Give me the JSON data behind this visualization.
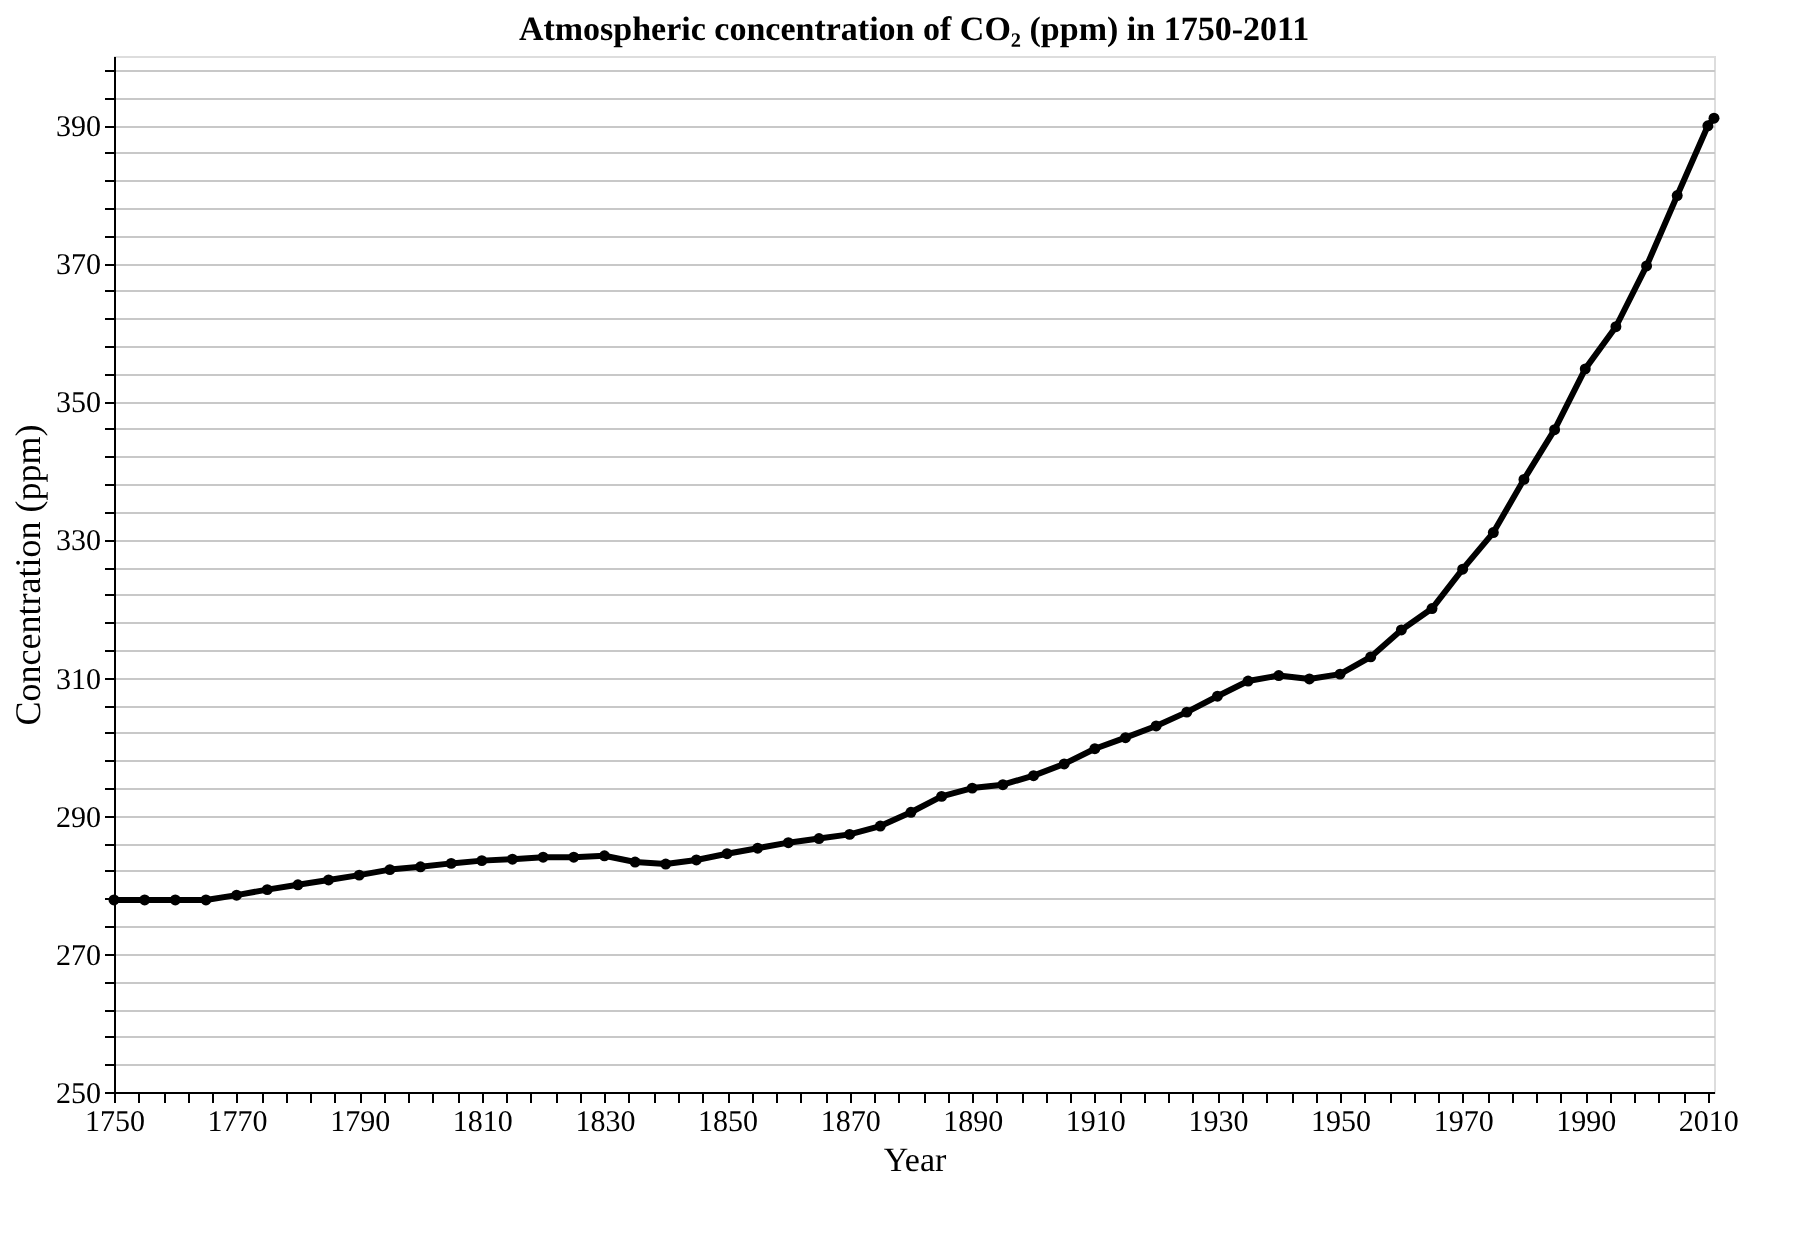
{
  "chart_data": {
    "type": "line",
    "title": "Atmospheric concentration of CO₂ (ppm) in 1750-2011",
    "xlabel": "Year",
    "ylabel": "Concentration (ppm)",
    "x": [
      1750,
      1755,
      1760,
      1765,
      1770,
      1775,
      1780,
      1785,
      1790,
      1795,
      1800,
      1805,
      1810,
      1815,
      1820,
      1825,
      1830,
      1835,
      1840,
      1845,
      1850,
      1855,
      1860,
      1865,
      1870,
      1875,
      1880,
      1885,
      1890,
      1895,
      1900,
      1905,
      1910,
      1915,
      1920,
      1925,
      1930,
      1935,
      1940,
      1945,
      1950,
      1955,
      1960,
      1965,
      1970,
      1975,
      1980,
      1985,
      1990,
      1995,
      2000,
      2005,
      2010,
      2011
    ],
    "series": [
      {
        "color": "#000000",
        "values": [
          277.8,
          277.8,
          277.8,
          277.8,
          278.5,
          279.3,
          280,
          280.7,
          281.4,
          282.2,
          282.6,
          283.1,
          283.5,
          283.7,
          284,
          284,
          284.2,
          283.3,
          283,
          283.6,
          284.5,
          285.3,
          286.1,
          286.7,
          287.3,
          288.5,
          290.5,
          292.8,
          294,
          294.5,
          295.8,
          297.5,
          299.7,
          301.3,
          303,
          305,
          307.3,
          309.5,
          310.3,
          309.8,
          310.5,
          313,
          316.9,
          320,
          325.7,
          331,
          338.7,
          345.9,
          354.7,
          360.8,
          369.6,
          379.8,
          389.9,
          391
        ]
      }
    ],
    "xlim": [
      1750,
      2011
    ],
    "xticks": [
      1750,
      {
        "value": 1754,
        "label": null
      },
      {
        "value": 1758,
        "label": null
      },
      {
        "value": 1762,
        "label": null
      },
      {
        "value": 1766,
        "label": null
      },
      1770,
      {
        "value": 1774,
        "label": null
      },
      {
        "value": 1778,
        "label": null
      },
      {
        "value": 1782,
        "label": null
      },
      {
        "value": 1786,
        "label": null
      },
      1790,
      {
        "value": 1794,
        "label": null
      },
      {
        "value": 1798,
        "label": null
      },
      {
        "value": 1802,
        "label": null
      },
      {
        "value": 1806,
        "label": null
      },
      1810,
      {
        "value": 1814,
        "label": null
      },
      {
        "value": 1818,
        "label": null
      },
      {
        "value": 1822,
        "label": null
      },
      {
        "value": 1826,
        "label": null
      },
      1830,
      {
        "value": 1834,
        "label": null
      },
      {
        "value": 1838,
        "label": null
      },
      {
        "value": 1842,
        "label": null
      },
      {
        "value": 1846,
        "label": null
      },
      1850,
      {
        "value": 1854,
        "label": null
      },
      {
        "value": 1858,
        "label": null
      },
      {
        "value": 1862,
        "label": null
      },
      {
        "value": 1866,
        "label": null
      },
      1870,
      {
        "value": 1874,
        "label": null
      },
      {
        "value": 1878,
        "label": null
      },
      {
        "value": 1882,
        "label": null
      },
      {
        "value": 1886,
        "label": null
      },
      1890,
      {
        "value": 1894,
        "label": null
      },
      {
        "value": 1898,
        "label": null
      },
      {
        "value": 1902,
        "label": null
      },
      {
        "value": 1906,
        "label": null
      },
      1910,
      {
        "value": 1914,
        "label": null
      },
      {
        "value": 1918,
        "label": null
      },
      {
        "value": 1922,
        "label": null
      },
      {
        "value": 1926,
        "label": null
      },
      1930,
      {
        "value": 1934,
        "label": null
      },
      {
        "value": 1938,
        "label": null
      },
      {
        "value": 1942,
        "label": null
      },
      {
        "value": 1946,
        "label": null
      },
      1950,
      {
        "value": 1954,
        "label": null
      },
      {
        "value": 1958,
        "label": null
      },
      {
        "value": 1962,
        "label": null
      },
      {
        "value": 1966,
        "label": null
      },
      1970,
      {
        "value": 1974,
        "label": null
      },
      {
        "value": 1978,
        "label": null
      },
      {
        "value": 1982,
        "label": null
      },
      {
        "value": 1986,
        "label": null
      },
      1990,
      {
        "value": 1994,
        "label": null
      },
      {
        "value": 1998,
        "label": null
      },
      {
        "value": 2002,
        "label": null
      },
      {
        "value": 2006,
        "label": null
      },
      2010
    ],
    "ylim": [
      250,
      400
    ],
    "yticks": [
      250,
      {
        "value": 254,
        "label": null
      },
      {
        "value": 258,
        "label": null
      },
      {
        "value": 262,
        "label": null
      },
      {
        "value": 266,
        "label": null
      },
      270,
      {
        "value": 274,
        "label": null
      },
      {
        "value": 278,
        "label": null
      },
      {
        "value": 282,
        "label": null
      },
      {
        "value": 286,
        "label": null
      },
      290,
      {
        "value": 294,
        "label": null
      },
      {
        "value": 298,
        "label": null
      },
      {
        "value": 302,
        "label": null
      },
      {
        "value": 306,
        "label": null
      },
      310,
      {
        "value": 314,
        "label": null
      },
      {
        "value": 318,
        "label": null
      },
      {
        "value": 322,
        "label": null
      },
      {
        "value": 326,
        "label": null
      },
      330,
      {
        "value": 334,
        "label": null
      },
      {
        "value": 338,
        "label": null
      },
      {
        "value": 342,
        "label": null
      },
      {
        "value": 346,
        "label": null
      },
      350,
      {
        "value": 354,
        "label": null
      },
      {
        "value": 358,
        "label": null
      },
      {
        "value": 362,
        "label": null
      },
      {
        "value": 366,
        "label": null
      },
      370,
      {
        "value": 374,
        "label": null
      },
      {
        "value": 378,
        "label": null
      },
      {
        "value": 382,
        "label": null
      },
      {
        "value": 386,
        "label": null
      },
      390,
      {
        "value": 394,
        "label": null
      },
      {
        "value": 398,
        "label": null
      }
    ],
    "grid": "y",
    "marker": "circle",
    "line_style": "solid"
  }
}
